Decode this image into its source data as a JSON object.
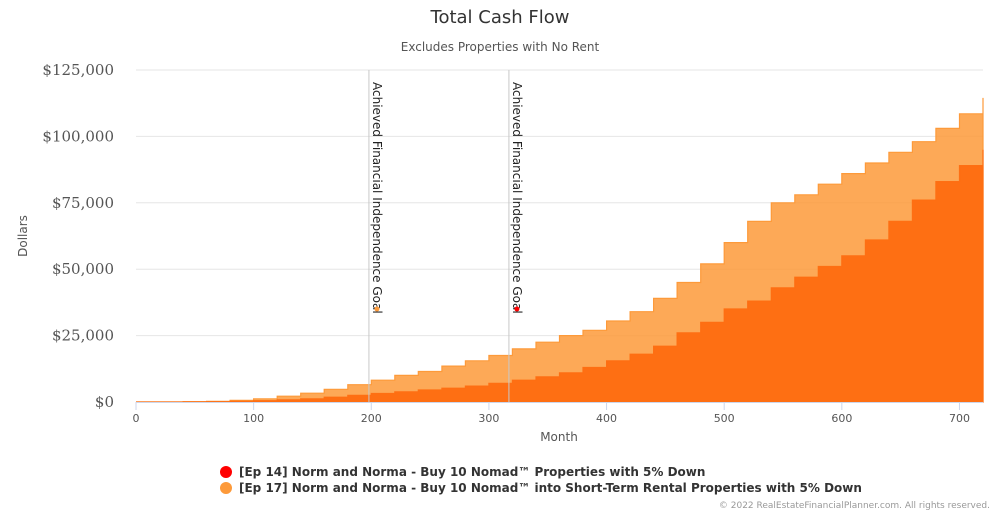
{
  "chart_data": {
    "type": "area",
    "title": "Total Cash Flow",
    "subtitle": "Excludes Properties with No Rent",
    "xlabel": "Month",
    "ylabel": "Dollars",
    "xlim": [
      0,
      720
    ],
    "ylim": [
      0,
      125000
    ],
    "x_ticks": [
      0,
      100,
      200,
      300,
      400,
      500,
      600,
      700
    ],
    "y_ticks": [
      0,
      25000,
      50000,
      75000,
      100000,
      125000
    ],
    "y_tick_labels": [
      "$0",
      "$25,000",
      "$50,000",
      "$75,000",
      "$100,000",
      "$125,000"
    ],
    "grid": true,
    "legend_position": "bottom-center",
    "series": [
      {
        "name": "[Ep 17] Norm and Norma - Buy 10 Nomad™ into Short-Term Rental Properties with 5% Down",
        "color": "#fd9a3a",
        "x": [
          0,
          40,
          60,
          80,
          100,
          120,
          140,
          160,
          180,
          200,
          220,
          240,
          260,
          280,
          300,
          320,
          340,
          360,
          380,
          400,
          420,
          440,
          460,
          480,
          500,
          520,
          540,
          560,
          580,
          600,
          620,
          640,
          660,
          680,
          700,
          720
        ],
        "values": [
          0,
          100,
          250,
          600,
          1200,
          2200,
          3300,
          4800,
          6500,
          8200,
          10000,
          11500,
          13500,
          15500,
          17500,
          20000,
          22500,
          25000,
          27000,
          30500,
          34000,
          39000,
          45000,
          52000,
          60000,
          68000,
          75000,
          78000,
          82000,
          86000,
          90000,
          94000,
          98000,
          103000,
          108500,
          114500
        ]
      },
      {
        "name": "[Ep 14] Norm and Norma - Buy 10 Nomad™ Properties with 5% Down",
        "color": "#fe6f13",
        "x": [
          0,
          40,
          60,
          80,
          100,
          120,
          140,
          160,
          180,
          200,
          220,
          240,
          260,
          280,
          300,
          320,
          340,
          360,
          380,
          400,
          420,
          440,
          460,
          480,
          500,
          520,
          540,
          560,
          580,
          600,
          620,
          640,
          660,
          680,
          700,
          720
        ],
        "values": [
          0,
          50,
          100,
          300,
          500,
          800,
          1200,
          1800,
          2500,
          3200,
          3800,
          4500,
          5200,
          6000,
          7000,
          8200,
          9500,
          11000,
          13000,
          15500,
          18000,
          21000,
          26000,
          30000,
          35000,
          38000,
          43000,
          47000,
          51000,
          55000,
          61000,
          68000,
          76000,
          83000,
          89000,
          95000
        ]
      }
    ],
    "plot_lines": [
      {
        "x": 198,
        "label": "Achieved Financial Independence Goal",
        "marker_y": 35000,
        "marker_color": "#fd9a3a"
      },
      {
        "x": 317,
        "label": "Achieved Financial Independence Goal",
        "marker_y": 35000,
        "marker_color": "#ff0000"
      }
    ],
    "legend": [
      {
        "label": "[Ep 14] Norm and Norma - Buy 10 Nomad™ Properties with 5% Down",
        "color": "#ff0000"
      },
      {
        "label": "[Ep 17] Norm and Norma - Buy 10 Nomad™ into Short-Term Rental Properties with 5% Down",
        "color": "#fd9a3a"
      }
    ]
  },
  "credits": "© 2022 RealEstateFinancialPlanner.com. All rights reserved."
}
